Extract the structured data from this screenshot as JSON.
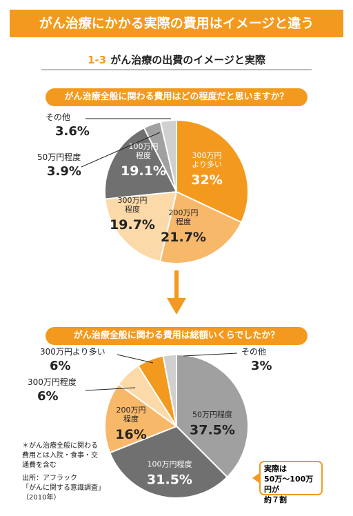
{
  "header": {
    "title": "がん治療にかかる実際の費用はイメージと違う"
  },
  "subtitle": {
    "number": "1-3",
    "text": "がん治療の出費のイメージと実際"
  },
  "colors": {
    "orange": "#f39a1e",
    "light_orange": "#f8b86a",
    "pale_orange": "#fbd9a8",
    "dark_gray": "#707070",
    "mid_gray": "#a0a0a0",
    "light_gray": "#d0d0d0"
  },
  "chart_data": [
    {
      "type": "pie",
      "title": "がん治療全般に関わる費用はどの程度だと思いますか？",
      "slices": [
        {
          "label": "300万円より多い",
          "value": 32,
          "value_text": "32%",
          "color": "#f39a1e",
          "in_lines": [
            "300万円",
            "より多い"
          ]
        },
        {
          "label": "200万円程度",
          "value": 21.7,
          "value_text": "21.7%",
          "color": "#f8b86a",
          "in_lines": [
            "200万円",
            "程度"
          ]
        },
        {
          "label": "300万円程度",
          "value": 19.7,
          "value_text": "19.7%",
          "color": "#fbd9a8",
          "in_lines": [
            "300万円",
            "程度"
          ]
        },
        {
          "label": "100万円程度",
          "value": 19.1,
          "value_text": "19.1%",
          "color": "#707070",
          "in_lines": [
            "100万円",
            "程度"
          ]
        },
        {
          "label": "50万円程度",
          "value": 3.9,
          "value_text": "3.9%",
          "color": "#a0a0a0",
          "in_lines": []
        },
        {
          "label": "その他",
          "value": 3.6,
          "value_text": "3.6%",
          "color": "#d0d0d0",
          "in_lines": []
        }
      ]
    },
    {
      "type": "pie",
      "title": "がん治療全般に関わる費用は総額いくらでしたか？",
      "slices": [
        {
          "label": "50万円程度",
          "value": 37.5,
          "value_text": "37.5%",
          "color": "#a0a0a0",
          "in_lines": [
            "50万円程度"
          ]
        },
        {
          "label": "100万円程度",
          "value": 31.5,
          "value_text": "31.5%",
          "color": "#707070",
          "in_lines": [
            "100万円程度"
          ]
        },
        {
          "label": "200万円程度",
          "value": 16,
          "value_text": "16%",
          "color": "#f8b86a",
          "in_lines": [
            "200万円",
            "程度"
          ]
        },
        {
          "label": "300万円程度",
          "value": 6,
          "value_text": "6%",
          "color": "#fbd9a8",
          "in_lines": []
        },
        {
          "label": "300万円より多い",
          "value": 6,
          "value_text": "6%",
          "color": "#f39a1e",
          "in_lines": []
        },
        {
          "label": "その他",
          "value": 3,
          "value_text": "3%",
          "color": "#d0d0d0",
          "in_lines": []
        }
      ]
    }
  ],
  "note": {
    "lines": [
      "＊がん治療全般に関わる",
      "費用とは入院・食事・交",
      "通費を含む"
    ],
    "source_lines": [
      "出所：アフラック",
      "「がんに関する意識調査」",
      "（2010年）"
    ]
  },
  "callout": {
    "lines": [
      "実際は",
      "50万～100万円が",
      "約７割"
    ]
  }
}
